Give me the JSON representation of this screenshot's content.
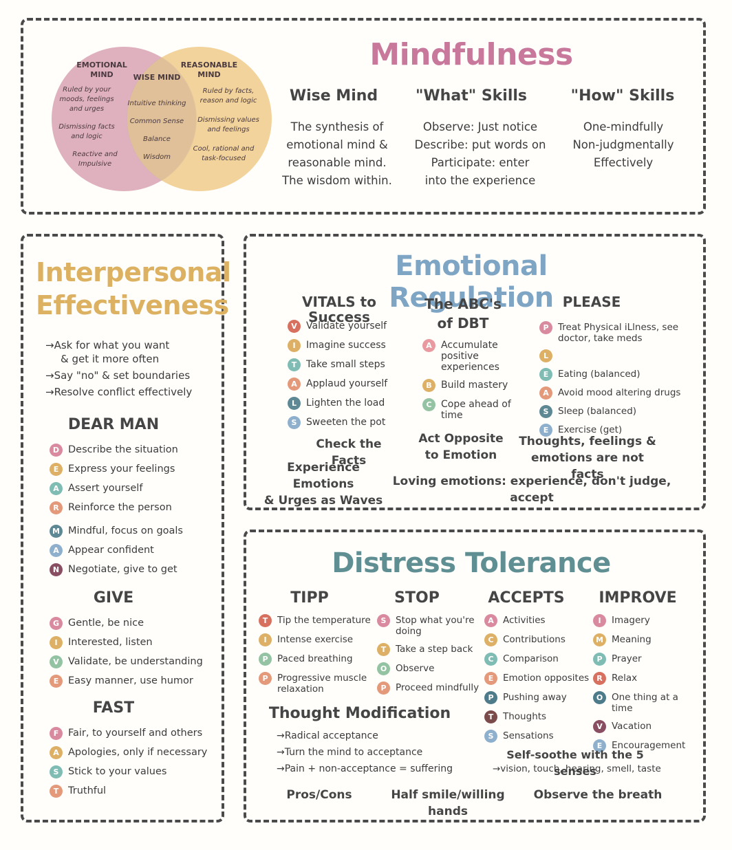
{
  "mindfulness": {
    "title": "Mindfulness",
    "venn": {
      "emotional_title": "EMOTIONAL MIND",
      "emotional_lines": [
        "Ruled by your moods, feelings and urges",
        "Dismissing facts and logic",
        "Reactive and Impulsive"
      ],
      "wise_title": "WISE MIND",
      "wise_lines": [
        "Intuitive thinking",
        "Common Sense",
        "Balance",
        "Wisdom"
      ],
      "reasonable_title": "REASONABLE MIND",
      "reasonable_lines": [
        "Ruled by facts, reason and logic",
        "Dismissing values and feelings",
        "Cool, rational and task-focused"
      ],
      "colors": {
        "emotional": "#d9a3b3",
        "reasonable": "#f0cb8b"
      }
    },
    "wise_mind": {
      "heading": "Wise Mind",
      "text": [
        "The synthesis of",
        "emotional mind &",
        "reasonable mind.",
        "The wisdom within."
      ]
    },
    "what_skills": {
      "heading": "\"What\" Skills",
      "text": [
        "Observe: Just notice",
        "Describe: put words on",
        "Participate: enter",
        "into the experience"
      ]
    },
    "how_skills": {
      "heading": "\"How\" Skills",
      "text": [
        "One-mindfully",
        "Non-judgmentally",
        "Effectively"
      ]
    }
  },
  "interpersonal": {
    "title_line1": "Interpersonal",
    "title_line2": "Effectiveness",
    "bullets": [
      "→Ask for what you want",
      "& get it more often",
      "→Say \"no\" & set boundaries",
      "→Resolve conflict effectively"
    ],
    "dear_man": {
      "heading": "DEAR MAN",
      "items": [
        {
          "letter": "D",
          "text": "Describe the situation",
          "color": "pink"
        },
        {
          "letter": "E",
          "text": "Express your feelings",
          "color": "gold"
        },
        {
          "letter": "A",
          "text": "Assert yourself",
          "color": "teal"
        },
        {
          "letter": "R",
          "text": "Reinforce the person",
          "color": "peach"
        },
        {
          "letter": "M",
          "text": "Mindful, focus on goals",
          "color": "slate"
        },
        {
          "letter": "A",
          "text": "Appear confident",
          "color": "blue"
        },
        {
          "letter": "N",
          "text": "Negotiate, give to get",
          "color": "plum"
        }
      ]
    },
    "give": {
      "heading": "GIVE",
      "items": [
        {
          "letter": "G",
          "text": "Gentle, be nice",
          "color": "pink"
        },
        {
          "letter": "I",
          "text": "Interested, listen",
          "color": "gold"
        },
        {
          "letter": "V",
          "text": "Validate, be understanding",
          "color": "green"
        },
        {
          "letter": "E",
          "text": "Easy manner, use humor",
          "color": "peach"
        }
      ]
    },
    "fast": {
      "heading": "FAST",
      "items": [
        {
          "letter": "F",
          "text": "Fair, to yourself and others",
          "color": "pink"
        },
        {
          "letter": "A",
          "text": "Apologies, only if necessary",
          "color": "gold"
        },
        {
          "letter": "S",
          "text": "Stick to your values",
          "color": "teal"
        },
        {
          "letter": "T",
          "text": "Truthful",
          "color": "peach"
        }
      ]
    }
  },
  "emotional_regulation": {
    "title": "Emotional Regulation",
    "vitals": {
      "heading": "VITALS to Success",
      "items": [
        {
          "letter": "V",
          "text": "Validate yourself",
          "color": "red"
        },
        {
          "letter": "I",
          "text": "Imagine success",
          "color": "gold"
        },
        {
          "letter": "T",
          "text": "Take small steps",
          "color": "teal"
        },
        {
          "letter": "A",
          "text": "Applaud yourself",
          "color": "peach"
        },
        {
          "letter": "L",
          "text": "Lighten the load",
          "color": "slate"
        },
        {
          "letter": "S",
          "text": "Sweeten the pot",
          "color": "blue"
        }
      ]
    },
    "abc": {
      "heading_line1": "The ABC's",
      "heading_line2": "of DBT",
      "items": [
        {
          "letter": "A",
          "text": "Accumulate positive experiences",
          "color": "rose"
        },
        {
          "letter": "B",
          "text": "Build mastery",
          "color": "gold"
        },
        {
          "letter": "C",
          "text": "Cope ahead of time",
          "color": "green"
        }
      ]
    },
    "please": {
      "heading": "PLEASE",
      "items": [
        {
          "letter": "P",
          "text": "Treat Physical iLlness, see doctor, take meds",
          "color": "pink"
        },
        {
          "letter": "L",
          "text": "",
          "color": "gold"
        },
        {
          "letter": "E",
          "text": "Eating (balanced)",
          "color": "teal"
        },
        {
          "letter": "A",
          "text": "Avoid mood altering drugs",
          "color": "peach"
        },
        {
          "letter": "S",
          "text": "Sleep (balanced)",
          "color": "slate"
        },
        {
          "letter": "E",
          "text": "Exercise (get)",
          "color": "blue"
        }
      ]
    },
    "check_facts": "Check the Facts",
    "act_opposite_line1": "Act Opposite",
    "act_opposite_line2": "to Emotion",
    "thoughts_line1": "Thoughts, feelings &",
    "thoughts_line2": "emotions are not facts",
    "experience_line1": "Experience Emotions",
    "experience_line2": "& Urges as Waves",
    "loving": "Loving emotions: experience, don't judge, accept"
  },
  "distress_tolerance": {
    "title": "Distress Tolerance",
    "tipp": {
      "heading": "TIPP",
      "items": [
        {
          "letter": "T",
          "text": "Tip the temperature",
          "color": "red"
        },
        {
          "letter": "I",
          "text": "Intense exercise",
          "color": "gold"
        },
        {
          "letter": "P",
          "text": "Paced breathing",
          "color": "green"
        },
        {
          "letter": "P",
          "text": "Progressive muscle relaxation",
          "color": "peach"
        }
      ]
    },
    "stop": {
      "heading": "STOP",
      "items": [
        {
          "letter": "S",
          "text": "Stop what you're doing",
          "color": "pink"
        },
        {
          "letter": "T",
          "text": "Take a step back",
          "color": "gold"
        },
        {
          "letter": "O",
          "text": "Observe",
          "color": "green"
        },
        {
          "letter": "P",
          "text": "Proceed mindfully",
          "color": "peach"
        }
      ]
    },
    "accepts": {
      "heading": "ACCEPTS",
      "items": [
        {
          "letter": "A",
          "text": "Activities",
          "color": "pink"
        },
        {
          "letter": "C",
          "text": "Contributions",
          "color": "gold"
        },
        {
          "letter": "C",
          "text": "Comparison",
          "color": "teal"
        },
        {
          "letter": "E",
          "text": "Emotion opposites",
          "color": "peach"
        },
        {
          "letter": "P",
          "text": "Pushing away",
          "color": "navy"
        },
        {
          "letter": "T",
          "text": "Thoughts",
          "color": "dark"
        },
        {
          "letter": "S",
          "text": "Sensations",
          "color": "blue"
        }
      ]
    },
    "improve": {
      "heading": "IMPROVE",
      "items": [
        {
          "letter": "I",
          "text": "Imagery",
          "color": "pink"
        },
        {
          "letter": "M",
          "text": "Meaning",
          "color": "gold"
        },
        {
          "letter": "P",
          "text": "Prayer",
          "color": "teal"
        },
        {
          "letter": "R",
          "text": "Relax",
          "color": "red"
        },
        {
          "letter": "O",
          "text": "One thing at a time",
          "color": "navy"
        },
        {
          "letter": "V",
          "text": "Vacation",
          "color": "plum"
        },
        {
          "letter": "E",
          "text": "Encouragement",
          "color": "blue"
        }
      ]
    },
    "thought_mod": {
      "heading": "Thought Modification",
      "items": [
        "→Radical acceptance",
        "→Turn the mind to acceptance",
        "→Pain + non-acceptance = suffering"
      ]
    },
    "self_soothe": {
      "heading": "Self-soothe with the 5 senses",
      "text": "→vision, touch, hearing, smell, taste"
    },
    "pros_cons": "Pros/Cons",
    "half_smile": "Half smile/willing hands",
    "observe_breath": "Observe the breath"
  },
  "colors": {
    "mindfulness_title": "#c8789b",
    "interpersonal_title": "#dcb162",
    "regulation_title": "#7fa5c4",
    "distress_title": "#5f8f92",
    "border": "#4a4a4a"
  }
}
